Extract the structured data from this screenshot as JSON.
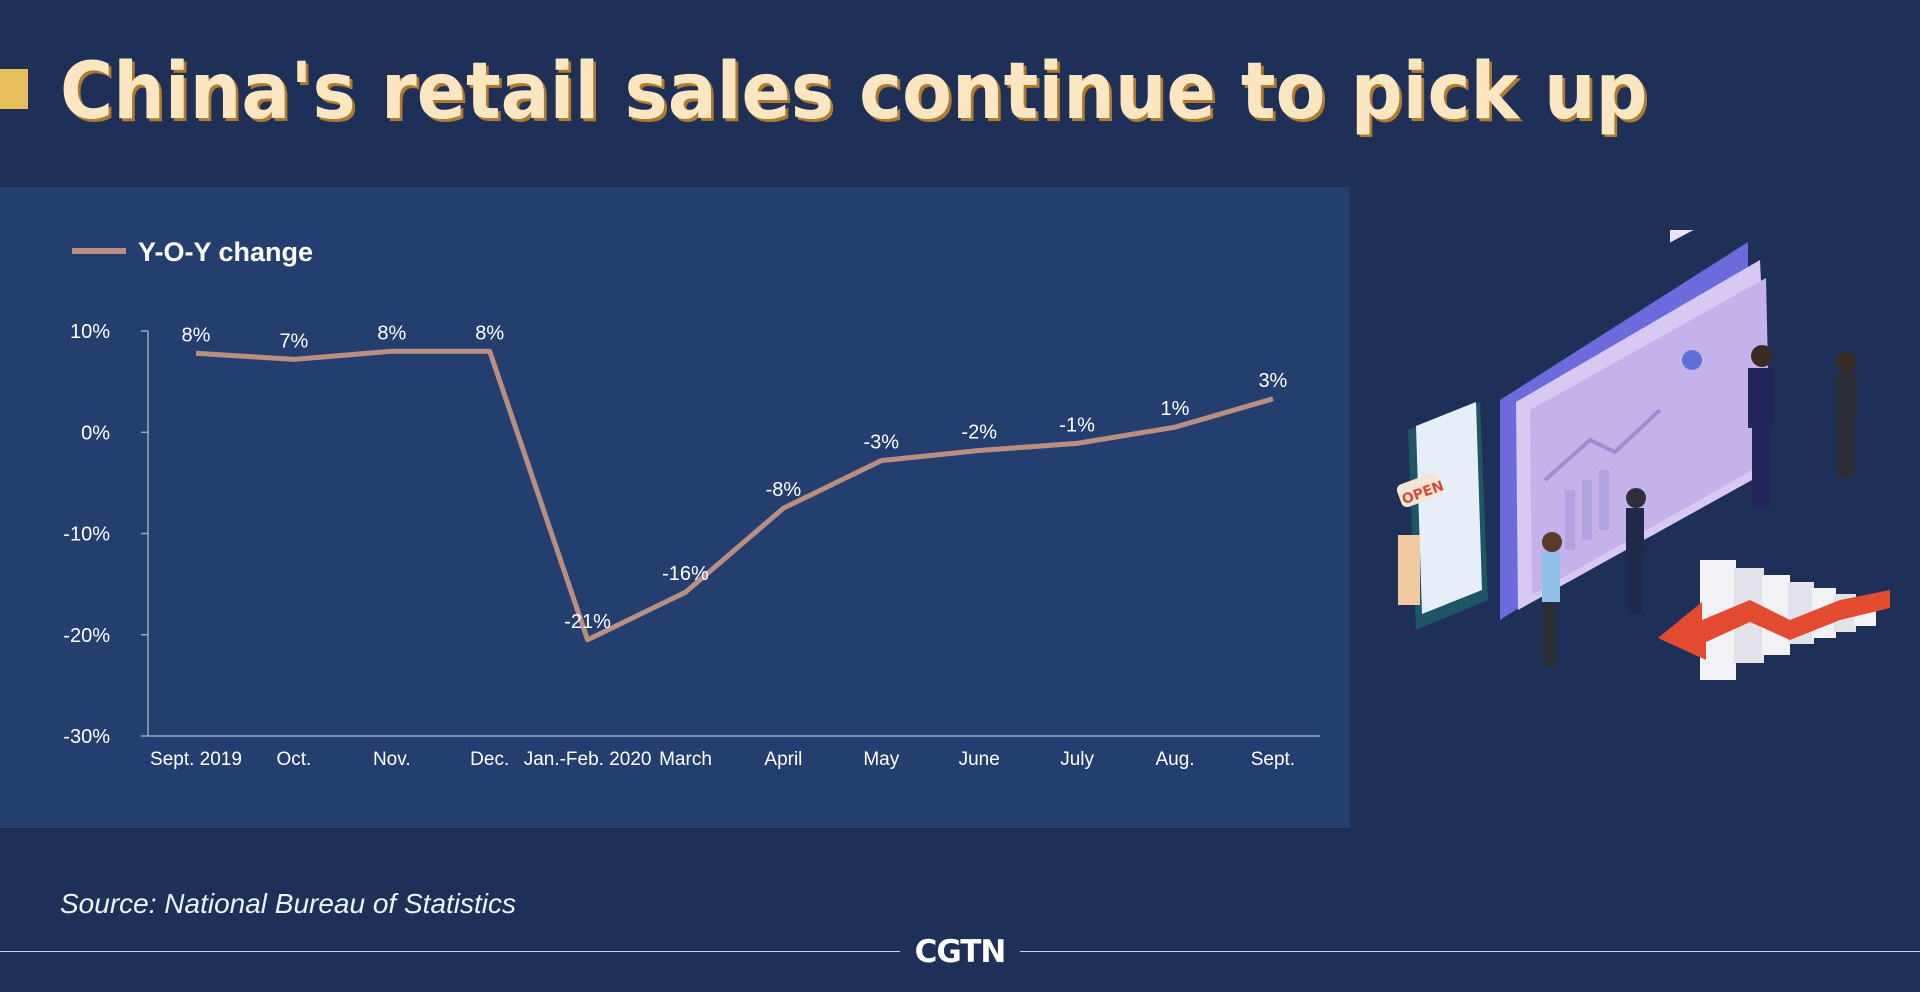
{
  "title": "China's retail sales continue to pick up",
  "source": "Source: National Bureau of Statistics",
  "brand": "CGTN",
  "colors": {
    "background": "#1e3058",
    "panel": "#253e70",
    "title": "#fbe6c2",
    "title_accent": "#e6bf5a",
    "line": "#b98f81",
    "axis": "#9aa7c2",
    "text": "#ffffff"
  },
  "chart_data": {
    "type": "line",
    "title": "China's retail sales continue to pick up",
    "xlabel": "",
    "ylabel": "",
    "ylim": [
      -30,
      10
    ],
    "yticks": [
      "10%",
      "0%",
      "-10%",
      "-20%",
      "-30%"
    ],
    "ytick_values": [
      10,
      0,
      -10,
      -20,
      -30
    ],
    "grid": false,
    "legend_position": "top-left",
    "categories": [
      "Sept. 2019",
      "Oct.",
      "Nov.",
      "Dec.",
      "Jan.-Feb. 2020",
      "March",
      "April",
      "May",
      "June",
      "July",
      "Aug.",
      "Sept."
    ],
    "series": [
      {
        "name": "Y-O-Y change",
        "values": [
          7.8,
          7.2,
          8.0,
          8.0,
          -20.5,
          -15.8,
          -7.5,
          -2.8,
          -1.8,
          -1.1,
          0.5,
          3.3
        ],
        "labels": [
          "8%",
          "7%",
          "8%",
          "8%",
          "-21%",
          "-16%",
          "-8%",
          "-3%",
          "-2%",
          "-1%",
          "1%",
          "3%"
        ]
      }
    ]
  }
}
